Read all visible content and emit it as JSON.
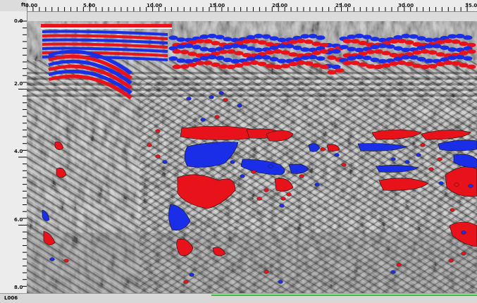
{
  "x_axis": {
    "unit": "ft",
    "ticks": [
      "0.00",
      "5.00",
      "10.00",
      "15.00",
      "20.00",
      "25.00",
      "30.00",
      "35.0"
    ]
  },
  "y_axis": {
    "unit": "ft",
    "ticks": [
      "0.0",
      "2.0",
      "4.0",
      "6.0",
      "8.0"
    ]
  },
  "file_name": "L006",
  "colors": {
    "positive_reflection": "#e8121b",
    "negative_reflection": "#1a2ee8",
    "background": "#9a9a9a"
  }
}
